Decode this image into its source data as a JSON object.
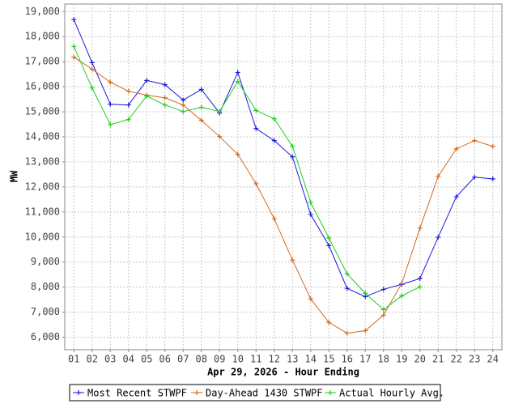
{
  "chart_data": {
    "type": "line",
    "x_label": "Apr 29, 2026 - Hour Ending",
    "y_label": "MW",
    "categories": [
      "01",
      "02",
      "03",
      "04",
      "05",
      "06",
      "07",
      "08",
      "09",
      "10",
      "11",
      "12",
      "13",
      "14",
      "15",
      "16",
      "17",
      "18",
      "19",
      "20",
      "21",
      "22",
      "23",
      "24"
    ],
    "series": [
      {
        "name": "Most Recent STWPF",
        "color": "#1a1adc",
        "values": [
          18680,
          16960,
          15300,
          15270,
          16250,
          16080,
          15470,
          15890,
          14950,
          16570,
          14330,
          13850,
          13200,
          10900,
          9660,
          7950,
          7620,
          7910,
          8110,
          8340,
          9990,
          11610,
          12390,
          12320
        ]
      },
      {
        "name": "Day-Ahead 1430 STWPF",
        "color": "#d2691e",
        "values": [
          17180,
          16700,
          16180,
          15820,
          15660,
          15560,
          15270,
          14660,
          14010,
          13300,
          12130,
          10730,
          9080,
          7530,
          6590,
          6160,
          6260,
          6880,
          8140,
          10350,
          12420,
          13520,
          13850,
          13620
        ]
      },
      {
        "name": "Actual Hourly Avg.",
        "color": "#22cc22",
        "values": [
          17610,
          15950,
          14490,
          14690,
          15630,
          15270,
          15010,
          15180,
          15010,
          16210,
          15050,
          14720,
          13620,
          11380,
          9960,
          8530,
          7750,
          7100,
          7650,
          8010,
          null,
          null,
          null,
          null
        ]
      }
    ],
    "ylim": [
      5500,
      19300
    ],
    "yticks": [
      {
        "value": 6000,
        "label": "6,000"
      },
      {
        "value": 7000,
        "label": "7,000"
      },
      {
        "value": 8000,
        "label": "8,000"
      },
      {
        "value": 9000,
        "label": "9,000"
      },
      {
        "value": 10000,
        "label": "10,000"
      },
      {
        "value": 11000,
        "label": "11,000"
      },
      {
        "value": 12000,
        "label": "12,000"
      },
      {
        "value": 13000,
        "label": "13,000"
      },
      {
        "value": 14000,
        "label": "14,000"
      },
      {
        "value": 15000,
        "label": "15,000"
      },
      {
        "value": 16000,
        "label": "16,000"
      },
      {
        "value": 17000,
        "label": "17,000"
      },
      {
        "value": 18000,
        "label": "18,000"
      },
      {
        "value": 19000,
        "label": "19,000"
      }
    ],
    "grid": true
  }
}
